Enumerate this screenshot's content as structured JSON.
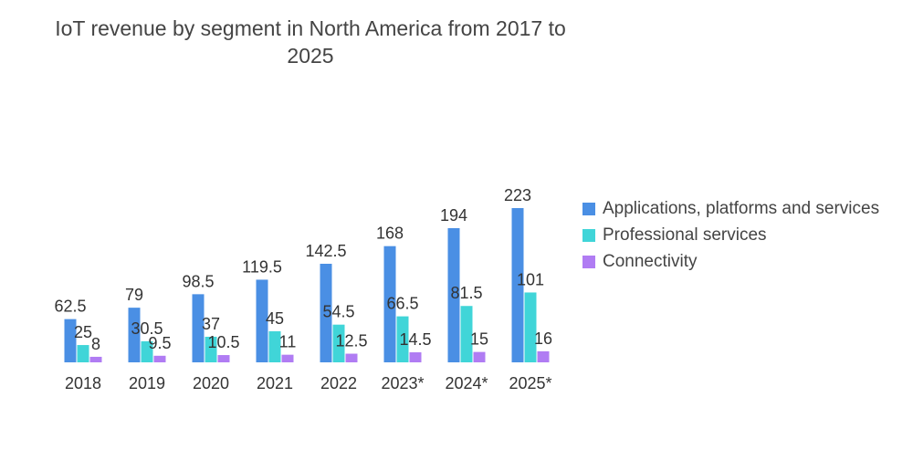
{
  "chart_data": {
    "type": "bar",
    "title": "IoT revenue by segment in North America from 2017 to 2025",
    "categories": [
      "2018",
      "2019",
      "2020",
      "2021",
      "2022",
      "2023*",
      "2024*",
      "2025*"
    ],
    "series": [
      {
        "name": "Applications, platforms and services",
        "color": "#4a8fe4",
        "values": [
          62.5,
          79,
          98.5,
          119.5,
          142.5,
          168,
          194,
          223
        ]
      },
      {
        "name": "Professional services",
        "color": "#40d5d8",
        "values": [
          25,
          30.5,
          37,
          45,
          54.5,
          66.5,
          81.5,
          101
        ]
      },
      {
        "name": "Connectivity",
        "color": "#b07cf3",
        "values": [
          8,
          9.5,
          10.5,
          11,
          12.5,
          14.5,
          15,
          16
        ]
      }
    ],
    "xlabel": "",
    "ylabel": "",
    "ylim": [
      0,
      223
    ],
    "legend_position": "right"
  }
}
